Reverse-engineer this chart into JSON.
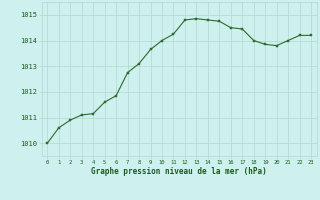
{
  "x": [
    0,
    1,
    2,
    3,
    4,
    5,
    6,
    7,
    8,
    9,
    10,
    11,
    12,
    13,
    14,
    15,
    16,
    17,
    18,
    19,
    20,
    21,
    22,
    23
  ],
  "y": [
    1010.0,
    1010.6,
    1010.9,
    1011.1,
    1011.15,
    1011.6,
    1011.85,
    1012.75,
    1013.1,
    1013.65,
    1014.0,
    1014.25,
    1014.8,
    1014.85,
    1014.8,
    1014.75,
    1014.5,
    1014.45,
    1014.0,
    1013.85,
    1013.8,
    1014.0,
    1014.2,
    1014.2
  ],
  "line_color": "#2d6a2d",
  "marker_color": "#2d6a2d",
  "bg_color": "#cef0ee",
  "grid_color": "#b0d8cc",
  "xlabel": "Graphe pression niveau de la mer (hPa)",
  "xlabel_color": "#1a5c1a",
  "tick_color": "#1a5c1a",
  "ylim": [
    1009.5,
    1015.5
  ],
  "yticks": [
    1010,
    1011,
    1012,
    1013,
    1014,
    1015
  ],
  "xticks": [
    0,
    1,
    2,
    3,
    4,
    5,
    6,
    7,
    8,
    9,
    10,
    11,
    12,
    13,
    14,
    15,
    16,
    17,
    18,
    19,
    20,
    21,
    22,
    23
  ],
  "figsize": [
    3.2,
    2.0
  ],
  "dpi": 100
}
